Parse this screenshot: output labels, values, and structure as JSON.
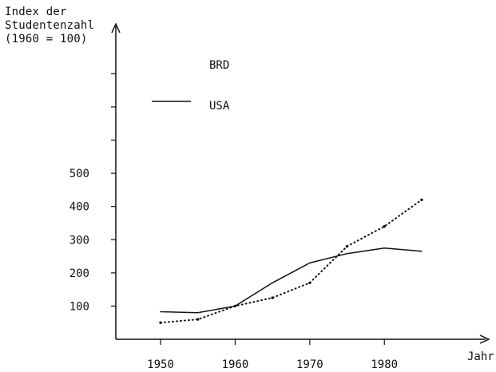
{
  "chart_data": {
    "type": "line",
    "title": "",
    "ylabel_lines": [
      "Index der",
      "Studentenzahl",
      "(1960 = 100)"
    ],
    "xlabel": "Jahr",
    "x": [
      1950,
      1955,
      1960,
      1965,
      1970,
      1975,
      1980,
      1985
    ],
    "xticks": [
      1950,
      1960,
      1970,
      1980
    ],
    "yticks": [
      100,
      200,
      300,
      400,
      500
    ],
    "xlim": [
      1944,
      1994
    ],
    "ylim": [
      0,
      950
    ],
    "grid": false,
    "legend_position": "upper-left",
    "series": [
      {
        "name": "BRD",
        "line_style": "dotted",
        "points": [
          [
            1950,
            50
          ],
          [
            1955,
            60
          ],
          [
            1960,
            100
          ],
          [
            1965,
            125
          ],
          [
            1970,
            170
          ],
          [
            1975,
            280
          ],
          [
            1980,
            340
          ],
          [
            1985,
            420
          ]
        ]
      },
      {
        "name": "USA",
        "line_style": "solid",
        "points": [
          [
            1950,
            83
          ],
          [
            1955,
            80
          ],
          [
            1960,
            100
          ],
          [
            1965,
            170
          ],
          [
            1970,
            230
          ],
          [
            1975,
            258
          ],
          [
            1980,
            275
          ],
          [
            1985,
            265
          ]
        ]
      }
    ]
  }
}
